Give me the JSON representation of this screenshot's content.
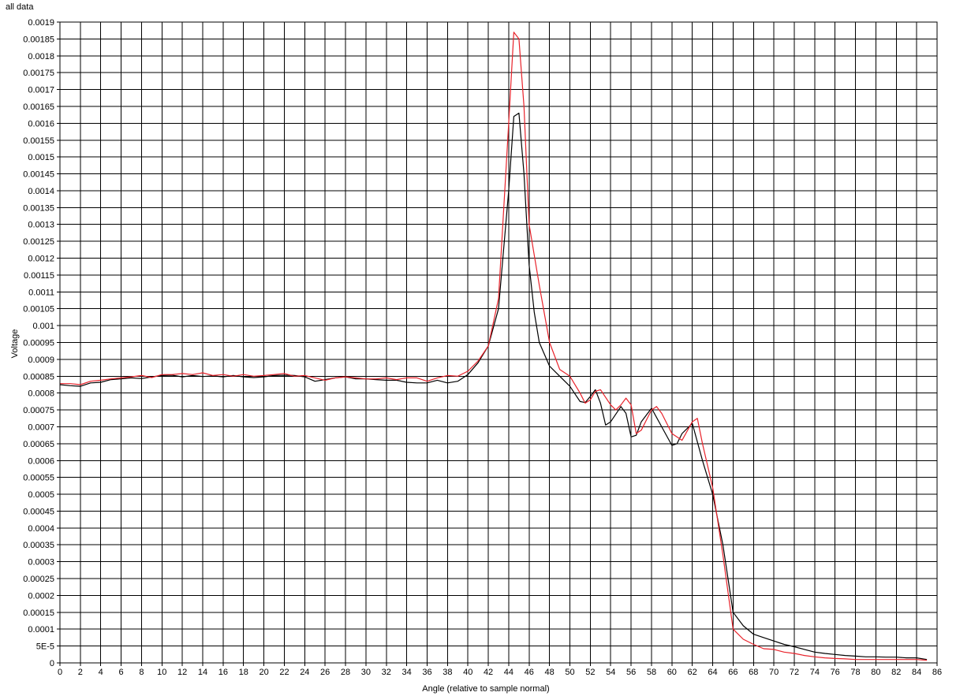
{
  "chart_data": {
    "type": "line",
    "title": "all data",
    "xlabel": "Angle (relative to sample normal)",
    "ylabel": "Voltage",
    "xlim": [
      0,
      86
    ],
    "ylim": [
      0,
      0.0019
    ],
    "xticks": [
      "0",
      "2",
      "4",
      "6",
      "8",
      "10",
      "12",
      "14",
      "16",
      "18",
      "20",
      "22",
      "24",
      "26",
      "28",
      "30",
      "32",
      "34",
      "36",
      "38",
      "40",
      "42",
      "44",
      "46",
      "48",
      "50",
      "52",
      "54",
      "56",
      "58",
      "60",
      "62",
      "64",
      "66",
      "68",
      "70",
      "72",
      "74",
      "76",
      "78",
      "80",
      "82",
      "84",
      "86"
    ],
    "yticks": [
      "0",
      "5E-5",
      "0.0001",
      "0.00015",
      "0.0002",
      "0.00025",
      "0.0003",
      "0.00035",
      "0.0004",
      "0.00045",
      "0.0005",
      "0.00055",
      "0.0006",
      "0.00065",
      "0.0007",
      "0.00075",
      "0.0008",
      "0.00085",
      "0.0009",
      "0.00095",
      "0.001",
      "0.00105",
      "0.0011",
      "0.00115",
      "0.0012",
      "0.00125",
      "0.0013",
      "0.00135",
      "0.0014",
      "0.00145",
      "0.0015",
      "0.00155",
      "0.0016",
      "0.00165",
      "0.0017",
      "0.00175",
      "0.0018",
      "0.00185",
      "0.0019"
    ],
    "grid": true,
    "series": [
      {
        "color": "#000000",
        "points": [
          [
            0,
            0.000825
          ],
          [
            1,
            0.000822
          ],
          [
            2,
            0.00082
          ],
          [
            3,
            0.00083
          ],
          [
            4,
            0.000832
          ],
          [
            5,
            0.00084
          ],
          [
            6,
            0.000842
          ],
          [
            7,
            0.000845
          ],
          [
            8,
            0.000843
          ],
          [
            9,
            0.000848
          ],
          [
            10,
            0.000852
          ],
          [
            11,
            0.000853
          ],
          [
            12,
            0.000848
          ],
          [
            13,
            0.000852
          ],
          [
            14,
            0.000849
          ],
          [
            15,
            0.000851
          ],
          [
            16,
            0.000848
          ],
          [
            17,
            0.000852
          ],
          [
            18,
            0.000848
          ],
          [
            19,
            0.000846
          ],
          [
            20,
            0.000848
          ],
          [
            21,
            0.000852
          ],
          [
            22,
            0.000853
          ],
          [
            23,
            0.000852
          ],
          [
            24,
            0.000848
          ],
          [
            25,
            0.000835
          ],
          [
            26,
            0.00084
          ],
          [
            27,
            0.000845
          ],
          [
            28,
            0.000848
          ],
          [
            29,
            0.000842
          ],
          [
            30,
            0.000842
          ],
          [
            31,
            0.00084
          ],
          [
            32,
            0.000838
          ],
          [
            33,
            0.000838
          ],
          [
            34,
            0.000832
          ],
          [
            35,
            0.00083
          ],
          [
            36,
            0.00083
          ],
          [
            37,
            0.000838
          ],
          [
            38,
            0.00083
          ],
          [
            39,
            0.000835
          ],
          [
            40,
            0.000855
          ],
          [
            41,
            0.00089
          ],
          [
            42,
            0.00094
          ],
          [
            43,
            0.00105
          ],
          [
            44,
            0.0014
          ],
          [
            44.5,
            0.00162
          ],
          [
            45,
            0.00163
          ],
          [
            45.5,
            0.00145
          ],
          [
            46,
            0.00118
          ],
          [
            46.5,
            0.00104
          ],
          [
            47,
            0.00095
          ],
          [
            48,
            0.00088
          ],
          [
            49,
            0.00085
          ],
          [
            50,
            0.00082
          ],
          [
            51,
            0.000775
          ],
          [
            51.5,
            0.000772
          ],
          [
            52,
            0.00079
          ],
          [
            52.5,
            0.00081
          ],
          [
            53,
            0.00077
          ],
          [
            53.5,
            0.000705
          ],
          [
            54,
            0.000715
          ],
          [
            55,
            0.00076
          ],
          [
            55.5,
            0.00074
          ],
          [
            56,
            0.00067
          ],
          [
            56.5,
            0.000675
          ],
          [
            57,
            0.000715
          ],
          [
            58,
            0.000755
          ],
          [
            59,
            0.0007
          ],
          [
            60,
            0.000645
          ],
          [
            60.5,
            0.00065
          ],
          [
            61,
            0.00068
          ],
          [
            62,
            0.00071
          ],
          [
            63,
            0.0006
          ],
          [
            64,
            0.0005
          ],
          [
            65,
            0.00035
          ],
          [
            66,
            0.00015
          ],
          [
            67,
            0.00011
          ],
          [
            68,
            8.5e-05
          ],
          [
            69,
            7.5e-05
          ],
          [
            70,
            6.5e-05
          ],
          [
            71,
            5.5e-05
          ],
          [
            72,
            4.8e-05
          ],
          [
            73,
            4e-05
          ],
          [
            74,
            3.2e-05
          ],
          [
            75,
            2.8e-05
          ],
          [
            76,
            2.5e-05
          ],
          [
            77,
            2.2e-05
          ],
          [
            78,
            2e-05
          ],
          [
            79,
            1.8e-05
          ],
          [
            80,
            1.8e-05
          ],
          [
            81,
            1.7e-05
          ],
          [
            82,
            1.7e-05
          ],
          [
            83,
            1.5e-05
          ],
          [
            84,
            1.5e-05
          ],
          [
            85,
            1e-05
          ]
        ]
      },
      {
        "color": "#e8222a",
        "points": [
          [
            0,
            0.000828
          ],
          [
            1,
            0.000828
          ],
          [
            2,
            0.000825
          ],
          [
            3,
            0.000835
          ],
          [
            4,
            0.000838
          ],
          [
            5,
            0.000842
          ],
          [
            6,
            0.000845
          ],
          [
            7,
            0.000848
          ],
          [
            8,
            0.000852
          ],
          [
            9,
            0.000846
          ],
          [
            10,
            0.000855
          ],
          [
            11,
            0.000855
          ],
          [
            12,
            0.000858
          ],
          [
            13,
            0.000855
          ],
          [
            14,
            0.00086
          ],
          [
            15,
            0.000852
          ],
          [
            16,
            0.000855
          ],
          [
            17,
            0.00085
          ],
          [
            18,
            0.000855
          ],
          [
            19,
            0.00085
          ],
          [
            20,
            0.000852
          ],
          [
            21,
            0.000855
          ],
          [
            22,
            0.000858
          ],
          [
            23,
            0.00085
          ],
          [
            24,
            0.000852
          ],
          [
            25,
            0.000845
          ],
          [
            26,
            0.000838
          ],
          [
            27,
            0.000845
          ],
          [
            28,
            0.000848
          ],
          [
            29,
            0.000845
          ],
          [
            30,
            0.000842
          ],
          [
            31,
            0.000842
          ],
          [
            32,
            0.000845
          ],
          [
            33,
            0.00084
          ],
          [
            34,
            0.000845
          ],
          [
            35,
            0.000845
          ],
          [
            36,
            0.000835
          ],
          [
            37,
            0.000845
          ],
          [
            38,
            0.000852
          ],
          [
            39,
            0.00085
          ],
          [
            40,
            0.000865
          ],
          [
            41,
            0.000895
          ],
          [
            42,
            0.00094
          ],
          [
            43,
            0.00108
          ],
          [
            44,
            0.0016
          ],
          [
            44.5,
            0.00187
          ],
          [
            45,
            0.00185
          ],
          [
            45.5,
            0.00165
          ],
          [
            46,
            0.0013
          ],
          [
            47,
            0.00112
          ],
          [
            48,
            0.00095
          ],
          [
            49,
            0.00087
          ],
          [
            50,
            0.00085
          ],
          [
            51,
            0.0008
          ],
          [
            51.5,
            0.00077
          ],
          [
            52,
            0.00078
          ],
          [
            52.5,
            0.000805
          ],
          [
            53,
            0.00081
          ],
          [
            54,
            0.000765
          ],
          [
            54.5,
            0.00075
          ],
          [
            55,
            0.000765
          ],
          [
            55.5,
            0.000785
          ],
          [
            56,
            0.000765
          ],
          [
            56.5,
            0.00068
          ],
          [
            57,
            0.00069
          ],
          [
            57.5,
            0.00072
          ],
          [
            58,
            0.00075
          ],
          [
            58.5,
            0.00076
          ],
          [
            59,
            0.00074
          ],
          [
            60,
            0.00068
          ],
          [
            61,
            0.00066
          ],
          [
            62,
            0.000715
          ],
          [
            62.5,
            0.000725
          ],
          [
            63,
            0.00065
          ],
          [
            64,
            0.00052
          ],
          [
            65,
            0.00032
          ],
          [
            66,
            0.0001
          ],
          [
            67,
            7e-05
          ],
          [
            68,
            5.5e-05
          ],
          [
            69,
            4.2e-05
          ],
          [
            70,
            4e-05
          ],
          [
            71,
            3.2e-05
          ],
          [
            72,
            2.8e-05
          ],
          [
            73,
            2.2e-05
          ],
          [
            74,
            1.8e-05
          ],
          [
            75,
            1.5e-05
          ],
          [
            76,
            1.3e-05
          ],
          [
            77,
            1.2e-05
          ],
          [
            78,
            1e-05
          ],
          [
            79,
            1e-05
          ],
          [
            80,
            1e-05
          ],
          [
            81,
            1e-05
          ],
          [
            82,
            1e-05
          ],
          [
            83,
            1e-05
          ],
          [
            84,
            1e-05
          ],
          [
            85,
            8e-06
          ]
        ]
      }
    ]
  }
}
